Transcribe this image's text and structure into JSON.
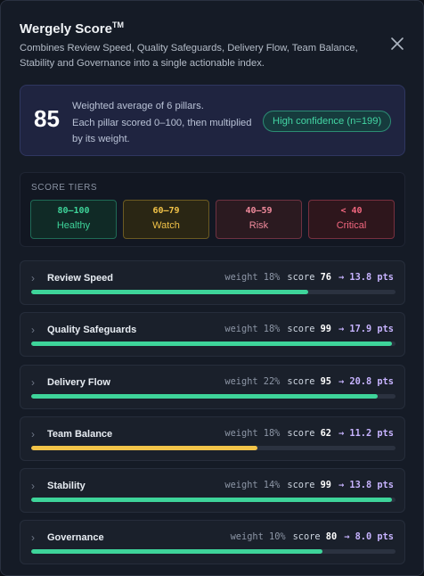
{
  "header": {
    "title": "Wergely Score",
    "title_mark": "TM",
    "subtitle": "Combines Review Speed, Quality Safeguards, Delivery Flow, Team Balance, Stability and Governance into a single actionable index.",
    "close_icon": "close-icon"
  },
  "summary": {
    "score": "85",
    "line1": "Weighted average of 6 pillars.",
    "line2": "Each pillar scored 0–100, then multiplied",
    "line3": "by its weight.",
    "confidence": "High confidence (n=199)"
  },
  "tiers": {
    "label": "SCORE TIERS",
    "items": [
      {
        "range": "80–100",
        "name": "Healthy"
      },
      {
        "range": "60–79",
        "name": "Watch"
      },
      {
        "range": "40–59",
        "name": "Risk"
      },
      {
        "range": "< 40",
        "name": "Critical"
      }
    ]
  },
  "colors": {
    "healthy": "#3ed49a",
    "watch": "#f2c348",
    "accent": "#c7b3ff"
  },
  "pillars": [
    {
      "name": "Review Speed",
      "weight": "weight 18%",
      "score_label": "score",
      "score": "76",
      "points": "→ 13.8 pts",
      "fill_percent": 76,
      "color": "#3ed49a"
    },
    {
      "name": "Quality Safeguards",
      "weight": "weight 18%",
      "score_label": "score",
      "score": "99",
      "points": "→ 17.9 pts",
      "fill_percent": 99,
      "color": "#3ed49a"
    },
    {
      "name": "Delivery Flow",
      "weight": "weight 22%",
      "score_label": "score",
      "score": "95",
      "points": "→ 20.8 pts",
      "fill_percent": 95,
      "color": "#3ed49a"
    },
    {
      "name": "Team Balance",
      "weight": "weight 18%",
      "score_label": "score",
      "score": "62",
      "points": "→ 11.2 pts",
      "fill_percent": 62,
      "color": "#f2c348"
    },
    {
      "name": "Stability",
      "weight": "weight 14%",
      "score_label": "score",
      "score": "99",
      "points": "→ 13.8 pts",
      "fill_percent": 99,
      "color": "#3ed49a"
    },
    {
      "name": "Governance",
      "weight": "weight 10%",
      "score_label": "score",
      "score": "80",
      "points": "→ 8.0 pts",
      "fill_percent": 80,
      "color": "#3ed49a"
    }
  ]
}
